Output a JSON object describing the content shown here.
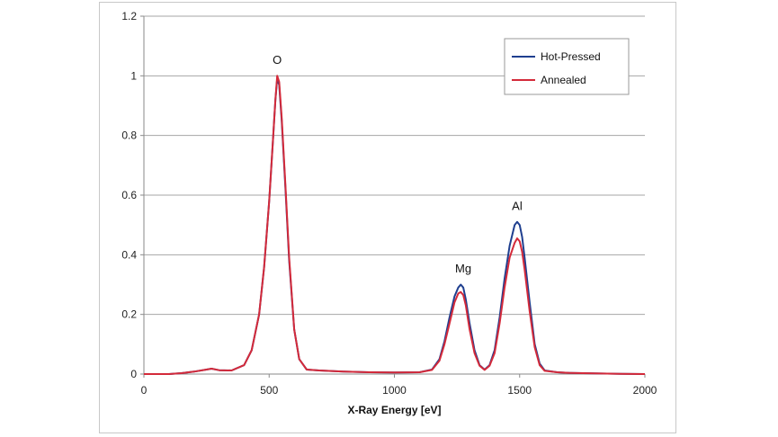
{
  "chart_data": {
    "type": "line",
    "title": "",
    "xlabel": "X-Ray Energy [eV]",
    "ylabel": "",
    "xlim": [
      0,
      2000
    ],
    "ylim": [
      0,
      1.2
    ],
    "xticks": [
      0,
      500,
      1000,
      1500,
      2000
    ],
    "xtick_labels": [
      "0",
      "500",
      "1000",
      "1500",
      "2000"
    ],
    "yticks": [
      0,
      0.2,
      0.4,
      0.6,
      0.8,
      1,
      1.2
    ],
    "ytick_labels": [
      "0",
      "0.2",
      "0.4",
      "0.6",
      "0.8",
      "1",
      "1.2"
    ],
    "grid": "horizontal",
    "legend_position": "top-right",
    "series": [
      {
        "name": "Hot-Pressed",
        "color": "#1f3f8f",
        "x": [
          0,
          100,
          150,
          200,
          250,
          270,
          300,
          350,
          400,
          430,
          460,
          480,
          500,
          515,
          525,
          532,
          540,
          550,
          565,
          580,
          600,
          620,
          650,
          700,
          800,
          900,
          1000,
          1100,
          1150,
          1180,
          1200,
          1220,
          1240,
          1255,
          1265,
          1275,
          1285,
          1300,
          1320,
          1340,
          1360,
          1380,
          1400,
          1420,
          1440,
          1460,
          1480,
          1490,
          1500,
          1510,
          1520,
          1540,
          1560,
          1580,
          1600,
          1650,
          1700,
          1800,
          1900,
          2000
        ],
        "y": [
          0,
          0,
          0.003,
          0.008,
          0.015,
          0.018,
          0.013,
          0.012,
          0.03,
          0.08,
          0.2,
          0.36,
          0.58,
          0.78,
          0.92,
          0.99,
          0.97,
          0.85,
          0.62,
          0.38,
          0.15,
          0.05,
          0.015,
          0.012,
          0.008,
          0.006,
          0.005,
          0.006,
          0.015,
          0.05,
          0.11,
          0.19,
          0.26,
          0.29,
          0.3,
          0.29,
          0.25,
          0.17,
          0.08,
          0.03,
          0.015,
          0.03,
          0.08,
          0.19,
          0.32,
          0.43,
          0.5,
          0.51,
          0.5,
          0.46,
          0.39,
          0.24,
          0.1,
          0.035,
          0.012,
          0.006,
          0.004,
          0.002,
          0.001,
          0
        ]
      },
      {
        "name": "Annealed",
        "color": "#d42a3a",
        "x": [
          0,
          100,
          150,
          200,
          250,
          270,
          300,
          350,
          400,
          430,
          460,
          480,
          500,
          515,
          525,
          532,
          540,
          550,
          565,
          580,
          600,
          620,
          650,
          700,
          800,
          900,
          1000,
          1100,
          1150,
          1180,
          1200,
          1220,
          1240,
          1255,
          1265,
          1275,
          1285,
          1300,
          1320,
          1340,
          1360,
          1380,
          1400,
          1420,
          1440,
          1460,
          1480,
          1490,
          1500,
          1510,
          1520,
          1540,
          1560,
          1580,
          1600,
          1650,
          1700,
          1800,
          1900,
          2000
        ],
        "y": [
          0,
          0,
          0.003,
          0.008,
          0.015,
          0.018,
          0.013,
          0.012,
          0.03,
          0.08,
          0.2,
          0.36,
          0.58,
          0.78,
          0.92,
          1.0,
          0.98,
          0.86,
          0.63,
          0.39,
          0.15,
          0.05,
          0.015,
          0.012,
          0.008,
          0.006,
          0.005,
          0.006,
          0.014,
          0.045,
          0.1,
          0.17,
          0.24,
          0.27,
          0.275,
          0.265,
          0.23,
          0.15,
          0.07,
          0.028,
          0.014,
          0.028,
          0.07,
          0.17,
          0.29,
          0.39,
          0.44,
          0.455,
          0.445,
          0.41,
          0.35,
          0.21,
          0.09,
          0.03,
          0.011,
          0.006,
          0.004,
          0.002,
          0.001,
          0
        ]
      }
    ],
    "annotations": [
      {
        "text": "O",
        "x": 532,
        "y": 1.04
      },
      {
        "text": "Mg",
        "x": 1275,
        "y": 0.34
      },
      {
        "text": "Al",
        "x": 1490,
        "y": 0.55
      }
    ]
  }
}
